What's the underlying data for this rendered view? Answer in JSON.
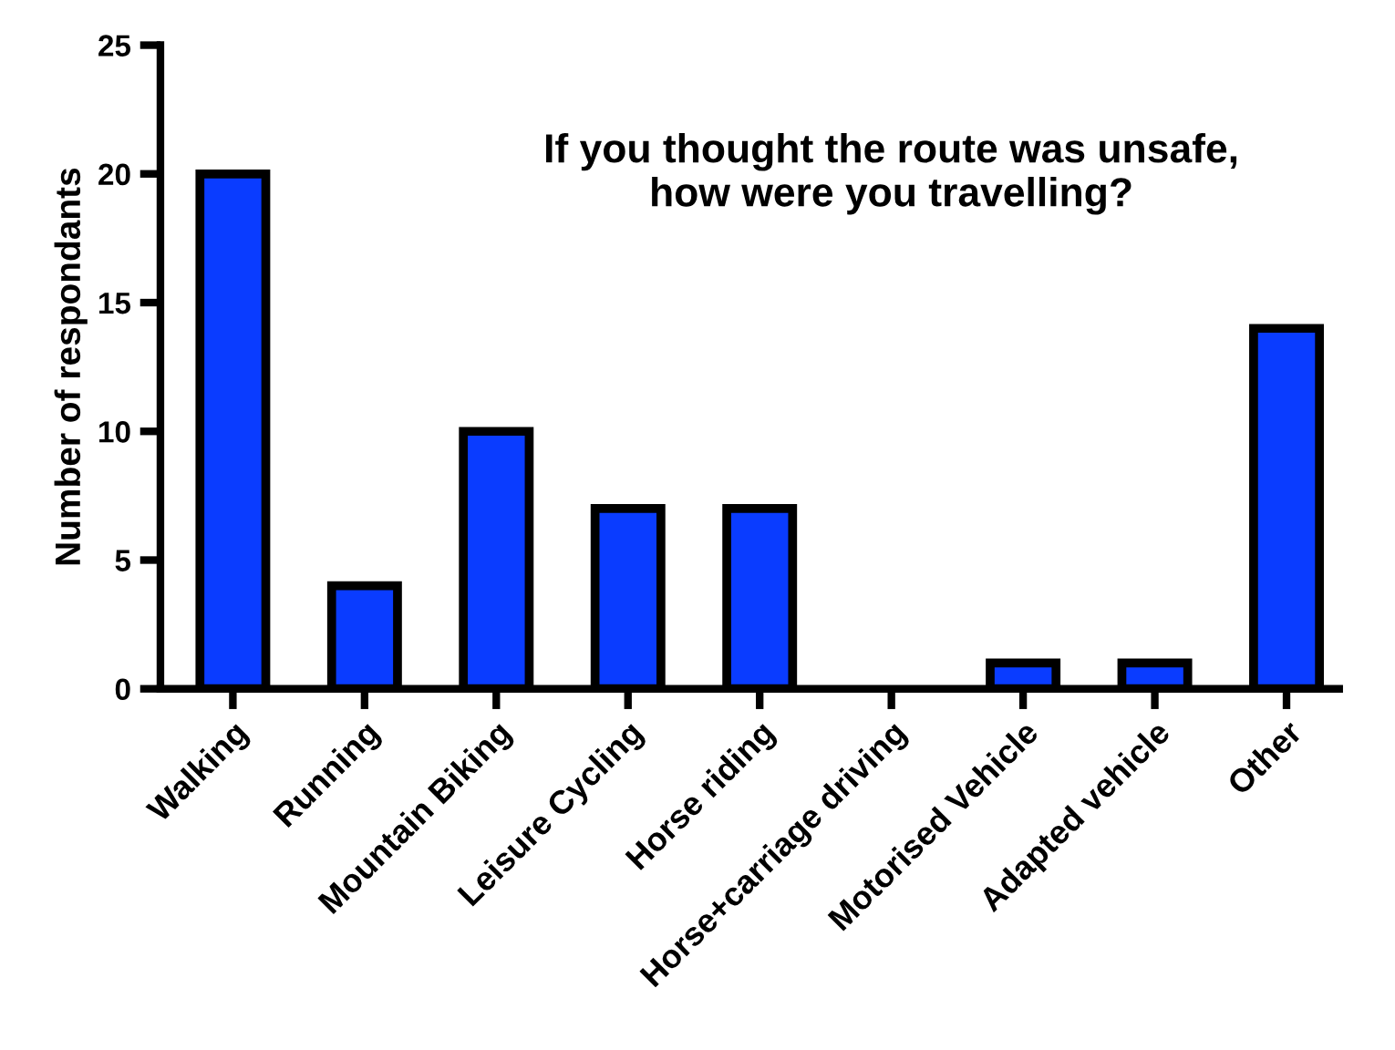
{
  "chart_data": {
    "type": "bar",
    "title": "If you thought the route was unsafe,\nhow were you travelling?",
    "ylabel": "Number of respondants",
    "categories": [
      "Walking",
      "Running",
      "Mountain Biking",
      "Leisure Cycling",
      "Horse riding",
      "Horse+carriage driving",
      "Motorised Vehicle",
      "Adapted vehicle",
      "Other"
    ],
    "values": [
      20,
      4,
      10,
      7,
      7,
      0,
      1,
      1,
      14
    ],
    "color": "#0a3cff",
    "ylim": [
      0,
      25
    ],
    "yticks": [
      0,
      5,
      10,
      15,
      20,
      25
    ],
    "grid": false
  }
}
